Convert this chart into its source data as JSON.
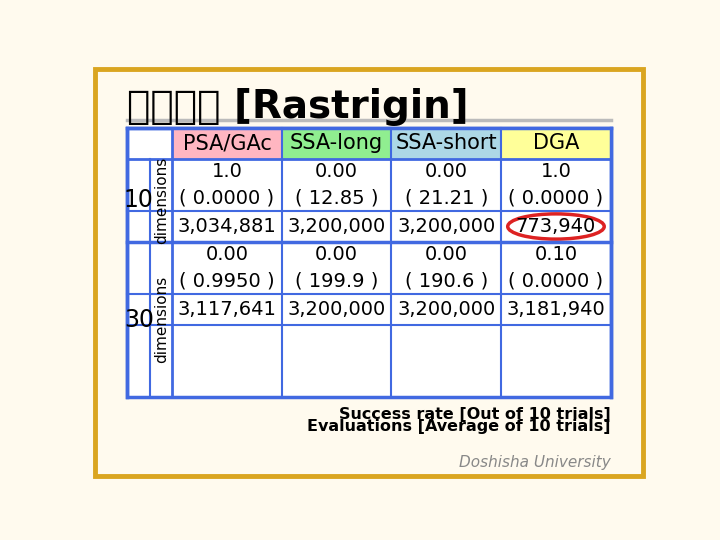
{
  "title": "実験結果 [Rastrigin]",
  "background_color": "#FFFAEE",
  "outer_border_color": "#DAA520",
  "table_border_color": "#4169E1",
  "header_labels": [
    "PSA/GAc",
    "SSA-long",
    "SSA-short",
    "DGA"
  ],
  "header_colors": [
    "#FFB6C1",
    "#90EE90",
    "#ADD8E6",
    "#FFFF99"
  ],
  "cells": {
    "row0_col0": "1.0\n( 0.0000 )",
    "row0_col1": "0.00\n( 12.85 )",
    "row0_col2": "0.00\n( 21.21 )",
    "row0_col3": "1.0\n( 0.0000 )",
    "row1_col0": "3,034,881",
    "row1_col1": "3,200,000",
    "row1_col2": "3,200,000",
    "row1_col3": "773,940",
    "row2_col0": "0.00\n( 0.9950 )",
    "row2_col1": "0.00\n( 199.9 )",
    "row2_col2": "0.00\n( 190.6 )",
    "row2_col3": "0.10\n( 0.0000 )",
    "row3_col0": "3,117,641",
    "row3_col1": "3,200,000",
    "row3_col2": "3,200,000",
    "row3_col3": "3,181,940"
  },
  "highlight_cell": [
    1,
    3
  ],
  "highlight_color": "#DD2222",
  "footnote1": "Success rate [Out of 10 trials]",
  "footnote2": "Evaluations [Average of 10 trials]",
  "watermark": "Doshisha University",
  "title_fontsize": 28,
  "header_fontsize": 15,
  "cell_fontsize": 14,
  "rownum_fontsize": 17,
  "rowlabel_fontsize": 11
}
